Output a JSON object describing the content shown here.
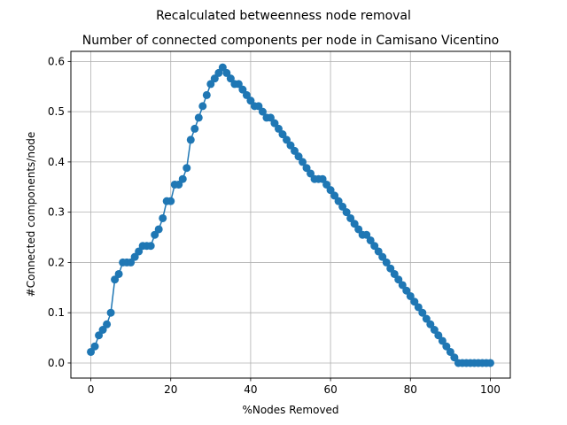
{
  "chart_data": {
    "type": "line",
    "suptitle": "Recalculated betweenness node removal",
    "title": "Number of connected components per node in Camisano Vicentino",
    "xlabel": "%Nodes Removed",
    "ylabel": "#Connected components/node",
    "xlim": [
      -5,
      105
    ],
    "ylim": [
      -0.03,
      0.62
    ],
    "xticks": [
      0,
      20,
      40,
      60,
      80,
      100
    ],
    "yticks": [
      0.0,
      0.1,
      0.2,
      0.3,
      0.4,
      0.5,
      0.6
    ],
    "xtick_labels": [
      "0",
      "20",
      "40",
      "60",
      "80",
      "100"
    ],
    "ytick_labels": [
      "0.0",
      "0.1",
      "0.2",
      "0.3",
      "0.4",
      "0.5",
      "0.6"
    ],
    "grid": true,
    "line_color": "#1f77b4",
    "series": [
      {
        "x": [
          0,
          1,
          2,
          3,
          4,
          5,
          6,
          7,
          8,
          9,
          10,
          11,
          12,
          13,
          14,
          15,
          16,
          17,
          18,
          19,
          20,
          21,
          22,
          23,
          24,
          25,
          26,
          27,
          28,
          29,
          30,
          31,
          32,
          33,
          34,
          35,
          36,
          37,
          38,
          39,
          40,
          41,
          42,
          43,
          44,
          45,
          46,
          47,
          48,
          49,
          50,
          51,
          52,
          53,
          54,
          55,
          56,
          57,
          58,
          59,
          60,
          61,
          62,
          63,
          64,
          65,
          66,
          67,
          68,
          69,
          70,
          71,
          72,
          73,
          74,
          75,
          76,
          77,
          78,
          79,
          80,
          81,
          82,
          83,
          84,
          85,
          86,
          87,
          88,
          89,
          90,
          91,
          92,
          93,
          94,
          95,
          96,
          97,
          98,
          99,
          100
        ],
        "y": [
          0.022,
          0.033,
          0.055,
          0.066,
          0.077,
          0.1,
          0.166,
          0.177,
          0.2,
          0.2,
          0.2,
          0.211,
          0.222,
          0.233,
          0.233,
          0.233,
          0.255,
          0.266,
          0.288,
          0.322,
          0.322,
          0.355,
          0.355,
          0.366,
          0.388,
          0.444,
          0.466,
          0.488,
          0.511,
          0.533,
          0.555,
          0.566,
          0.577,
          0.588,
          0.577,
          0.566,
          0.555,
          0.555,
          0.544,
          0.533,
          0.522,
          0.511,
          0.511,
          0.5,
          0.488,
          0.488,
          0.477,
          0.466,
          0.455,
          0.444,
          0.433,
          0.422,
          0.411,
          0.4,
          0.388,
          0.377,
          0.366,
          0.366,
          0.366,
          0.355,
          0.344,
          0.333,
          0.322,
          0.311,
          0.3,
          0.288,
          0.277,
          0.266,
          0.255,
          0.255,
          0.244,
          0.233,
          0.222,
          0.211,
          0.2,
          0.188,
          0.177,
          0.166,
          0.155,
          0.144,
          0.133,
          0.122,
          0.111,
          0.1,
          0.088,
          0.077,
          0.066,
          0.055,
          0.044,
          0.033,
          0.022,
          0.011,
          0.0,
          0.0,
          0.0,
          0.0,
          0.0,
          0.0,
          0.0,
          0.0,
          0.0
        ]
      }
    ]
  }
}
